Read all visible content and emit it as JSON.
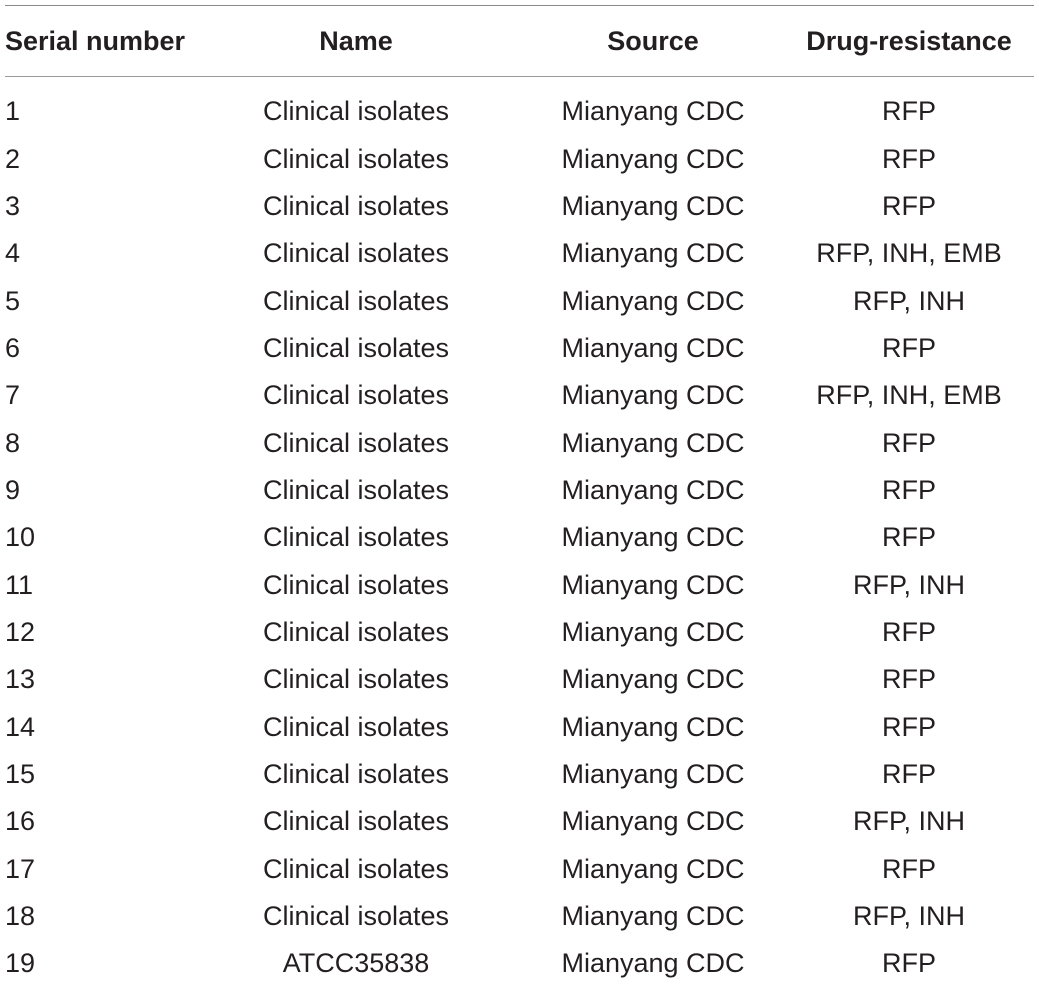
{
  "table": {
    "headers": [
      "Serial number",
      "Name",
      "Source",
      "Drug-resistance"
    ],
    "rows": [
      [
        "1",
        "Clinical isolates",
        "Mianyang CDC",
        "RFP"
      ],
      [
        "2",
        "Clinical isolates",
        "Mianyang CDC",
        "RFP"
      ],
      [
        "3",
        "Clinical isolates",
        "Mianyang CDC",
        "RFP"
      ],
      [
        "4",
        "Clinical isolates",
        "Mianyang CDC",
        "RFP, INH, EMB"
      ],
      [
        "5",
        "Clinical isolates",
        "Mianyang CDC",
        "RFP, INH"
      ],
      [
        "6",
        "Clinical isolates",
        "Mianyang CDC",
        "RFP"
      ],
      [
        "7",
        "Clinical isolates",
        "Mianyang CDC",
        "RFP, INH, EMB"
      ],
      [
        "8",
        "Clinical isolates",
        "Mianyang CDC",
        "RFP"
      ],
      [
        "9",
        "Clinical isolates",
        "Mianyang CDC",
        "RFP"
      ],
      [
        "10",
        "Clinical isolates",
        "Mianyang CDC",
        "RFP"
      ],
      [
        "11",
        "Clinical isolates",
        "Mianyang CDC",
        "RFP, INH"
      ],
      [
        "12",
        "Clinical isolates",
        "Mianyang CDC",
        "RFP"
      ],
      [
        "13",
        "Clinical isolates",
        "Mianyang CDC",
        "RFP"
      ],
      [
        "14",
        "Clinical isolates",
        "Mianyang CDC",
        "RFP"
      ],
      [
        "15",
        "Clinical isolates",
        "Mianyang CDC",
        "RFP"
      ],
      [
        "16",
        "Clinical isolates",
        "Mianyang CDC",
        "RFP, INH"
      ],
      [
        "17",
        "Clinical isolates",
        "Mianyang CDC",
        "RFP"
      ],
      [
        "18",
        "Clinical isolates",
        "Mianyang CDC",
        "RFP, INH"
      ],
      [
        "19",
        "ATCC35838",
        "Mianyang CDC",
        "RFP"
      ]
    ]
  }
}
